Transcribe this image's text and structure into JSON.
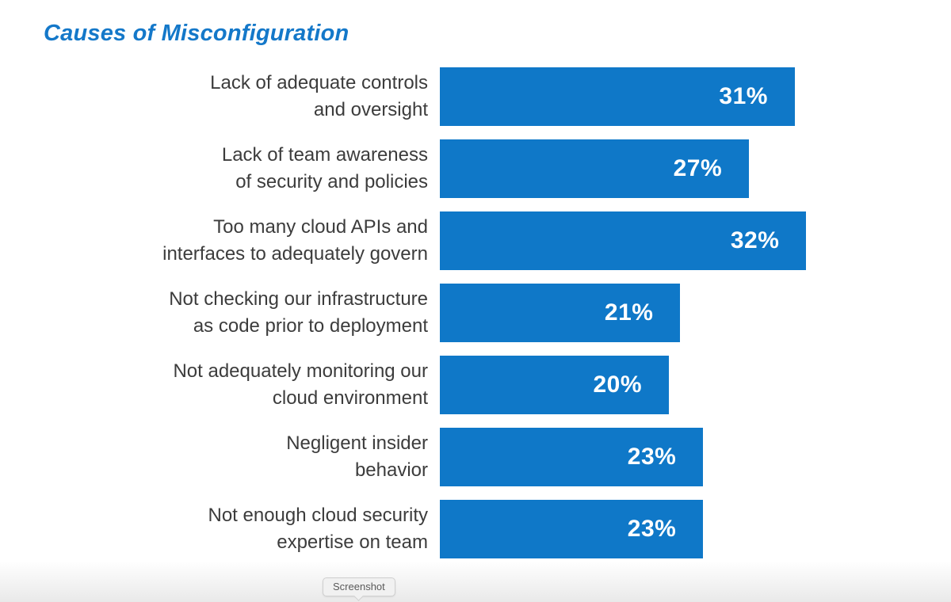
{
  "title": "Causes of Misconfiguration",
  "tooltip": {
    "label": "Screenshot"
  },
  "chart_data": {
    "type": "bar",
    "orientation": "horizontal",
    "title": "Causes of Misconfiguration",
    "xlabel": "",
    "ylabel": "",
    "grid": false,
    "legend": "none",
    "bar_color": "#0f78c8",
    "value_label_color": "#ffffff",
    "categories": [
      "Lack of adequate controls and oversight",
      "Lack of team awareness of security and policies",
      "Too many cloud APIs and interfaces to adequately govern",
      "Not checking our infrastructure as code prior to deployment",
      "Not adequately monitoring our cloud environment",
      "Negligent insider behavior",
      "Not enough cloud security expertise on team"
    ],
    "category_lines": [
      [
        "Lack of adequate controls",
        "and oversight"
      ],
      [
        "Lack of team awareness",
        "of security and policies"
      ],
      [
        "Too many cloud APIs and",
        "interfaces to adequately govern"
      ],
      [
        "Not checking our infrastructure",
        "as code prior to deployment"
      ],
      [
        "Not adequately monitoring our",
        "cloud environment"
      ],
      [
        "Negligent insider",
        "behavior"
      ],
      [
        "Not enough cloud security",
        "expertise on team"
      ]
    ],
    "values": [
      31,
      27,
      32,
      21,
      20,
      23,
      23
    ],
    "value_labels": [
      "31%",
      "27%",
      "32%",
      "21%",
      "20%",
      "23%",
      "23%"
    ],
    "xlim": [
      0,
      44.6
    ]
  }
}
